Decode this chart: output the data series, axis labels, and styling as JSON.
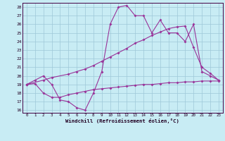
{
  "bg_color": "#c8ecf4",
  "grid_color": "#9ec8d8",
  "line_color": "#993399",
  "xlabel": "Windchill (Refroidissement éolien,°C)",
  "xlim": [
    -0.5,
    23.5
  ],
  "ylim": [
    15.7,
    28.5
  ],
  "yticks": [
    16,
    17,
    18,
    19,
    20,
    21,
    22,
    23,
    24,
    25,
    26,
    27,
    28
  ],
  "xticks": [
    0,
    1,
    2,
    3,
    4,
    5,
    6,
    7,
    8,
    9,
    10,
    11,
    12,
    13,
    14,
    15,
    16,
    17,
    18,
    19,
    20,
    21,
    22,
    23
  ],
  "line1_x": [
    0,
    1,
    2,
    3,
    4,
    5,
    6,
    7,
    8,
    9,
    10,
    11,
    12,
    13,
    14,
    15,
    16,
    17,
    18,
    19,
    20,
    21,
    22,
    23
  ],
  "line1_y": [
    19,
    19.5,
    20,
    19,
    17.2,
    17,
    16.3,
    16,
    18,
    20.5,
    26,
    28,
    28.2,
    27,
    27,
    25,
    26.5,
    25,
    25,
    24,
    26,
    20.5,
    20,
    19.5
  ],
  "line2_x": [
    0,
    2,
    3,
    5,
    6,
    7,
    8,
    9,
    10,
    11,
    12,
    13,
    14,
    15,
    16,
    17,
    18,
    19,
    20,
    21,
    22,
    23
  ],
  "line2_y": [
    19,
    19.5,
    19.8,
    20.2,
    20.5,
    20.8,
    21.2,
    21.7,
    22.2,
    22.7,
    23.2,
    23.8,
    24.2,
    24.7,
    25.1,
    25.5,
    25.7,
    25.8,
    23.3,
    21.0,
    20.3,
    19.5
  ],
  "line3_x": [
    0,
    1,
    2,
    3,
    4,
    5,
    6,
    7,
    8,
    9,
    10,
    11,
    12,
    13,
    14,
    15,
    16,
    17,
    18,
    19,
    20,
    21,
    22,
    23
  ],
  "line3_y": [
    19,
    19.1,
    18.0,
    17.5,
    17.5,
    17.8,
    18.0,
    18.2,
    18.4,
    18.5,
    18.6,
    18.7,
    18.8,
    18.9,
    19.0,
    19.0,
    19.1,
    19.2,
    19.2,
    19.3,
    19.3,
    19.4,
    19.4,
    19.4
  ]
}
